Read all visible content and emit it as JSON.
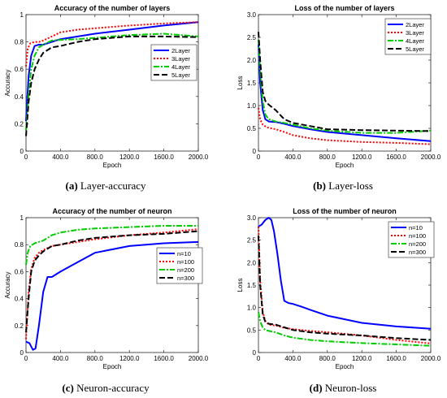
{
  "chart_data": [
    {
      "type": "line",
      "title": "Accuracy of the number of layers",
      "xlabel": "Epoch",
      "ylabel": "Accuracy",
      "caption_tag": "(a)",
      "caption_text": "Layer-accuracy",
      "xlim": [
        0,
        2000
      ],
      "ylim": [
        0,
        1
      ],
      "xticks": [
        0,
        400,
        800,
        1200,
        1600,
        2000
      ],
      "xtick_labels": [
        "0",
        "400.0",
        "800.0",
        "1200.0",
        "1600.0",
        "2000.0"
      ],
      "yticks": [
        0,
        0.2,
        0.4,
        0.6,
        0.8,
        1
      ],
      "ytick_labels": [
        "0",
        "0.2",
        "0.4",
        "0.6",
        "0.8",
        "1"
      ],
      "legend_position": "right-middle",
      "series": [
        {
          "name": "2Layer",
          "color": "#0000ff",
          "dash": "solid",
          "x": [
            0,
            30,
            60,
            100,
            150,
            200,
            300,
            400,
            600,
            800,
            1200,
            1600,
            2000
          ],
          "y": [
            0.22,
            0.55,
            0.7,
            0.77,
            0.78,
            0.78,
            0.8,
            0.82,
            0.84,
            0.86,
            0.89,
            0.92,
            0.945
          ]
        },
        {
          "name": "3Layer",
          "color": "#ff0000",
          "dash": "dot",
          "x": [
            0,
            20,
            50,
            100,
            150,
            200,
            300,
            400,
            600,
            800,
            1200,
            1600,
            2000
          ],
          "y": [
            0.62,
            0.75,
            0.79,
            0.8,
            0.8,
            0.81,
            0.84,
            0.87,
            0.89,
            0.9,
            0.92,
            0.935,
            0.945
          ]
        },
        {
          "name": "4Layer",
          "color": "#00cc00",
          "dash": "dashdot",
          "x": [
            0,
            30,
            60,
            100,
            150,
            200,
            300,
            400,
            600,
            800,
            1200,
            1600,
            2000
          ],
          "y": [
            0.15,
            0.42,
            0.6,
            0.7,
            0.76,
            0.78,
            0.81,
            0.815,
            0.82,
            0.83,
            0.85,
            0.86,
            0.84
          ]
        },
        {
          "name": "5Layer",
          "color": "#000000",
          "dash": "dash",
          "x": [
            0,
            30,
            60,
            100,
            150,
            200,
            300,
            400,
            600,
            800,
            1200,
            1600,
            2000
          ],
          "y": [
            0.11,
            0.36,
            0.5,
            0.6,
            0.67,
            0.72,
            0.76,
            0.77,
            0.8,
            0.82,
            0.84,
            0.84,
            0.835
          ]
        }
      ]
    },
    {
      "type": "line",
      "title": "Loss of the number of layers",
      "xlabel": "Epoch",
      "ylabel": "Loss",
      "caption_tag": "(b)",
      "caption_text": "Layer-loss",
      "xlim": [
        0,
        2000
      ],
      "ylim": [
        0,
        3
      ],
      "xticks": [
        0,
        400,
        800,
        1200,
        1600,
        2000
      ],
      "xtick_labels": [
        "0",
        "400.0",
        "800.0",
        "1200.0",
        "1600.0",
        "2000.0"
      ],
      "yticks": [
        0,
        0.5,
        1,
        1.5,
        2,
        2.5,
        3
      ],
      "ytick_labels": [
        "0",
        "0.5",
        "1.0",
        "1.5",
        "2.0",
        "2.5",
        "3.0"
      ],
      "legend_position": "top-right",
      "series": [
        {
          "name": "2Layer",
          "color": "#0000ff",
          "dash": "solid",
          "x": [
            0,
            20,
            50,
            80,
            120,
            200,
            300,
            400,
            600,
            800,
            1200,
            1600,
            2000
          ],
          "y": [
            2.35,
            1.5,
            0.9,
            0.7,
            0.65,
            0.64,
            0.6,
            0.55,
            0.48,
            0.42,
            0.35,
            0.28,
            0.22
          ]
        },
        {
          "name": "3Layer",
          "color": "#ff0000",
          "dash": "dot",
          "x": [
            0,
            20,
            50,
            100,
            150,
            200,
            300,
            400,
            600,
            800,
            1200,
            1600,
            2000
          ],
          "y": [
            0.95,
            0.7,
            0.58,
            0.52,
            0.5,
            0.48,
            0.42,
            0.35,
            0.28,
            0.24,
            0.2,
            0.18,
            0.15
          ]
        },
        {
          "name": "4Layer",
          "color": "#00cc00",
          "dash": "dashdot",
          "x": [
            0,
            20,
            50,
            80,
            120,
            200,
            300,
            400,
            600,
            800,
            1200,
            1600,
            2000
          ],
          "y": [
            2.45,
            1.8,
            1.1,
            0.8,
            0.7,
            0.65,
            0.62,
            0.58,
            0.5,
            0.45,
            0.4,
            0.4,
            0.45
          ]
        },
        {
          "name": "5Layer",
          "color": "#000000",
          "dash": "dash",
          "x": [
            0,
            20,
            50,
            80,
            120,
            200,
            300,
            400,
            600,
            800,
            1200,
            1600,
            2000
          ],
          "y": [
            2.62,
            2.0,
            1.3,
            1.1,
            1.02,
            0.9,
            0.7,
            0.62,
            0.55,
            0.48,
            0.46,
            0.45,
            0.44
          ]
        }
      ]
    },
    {
      "type": "line",
      "title": "Accuracy of the number of neuron",
      "xlabel": "Epoch",
      "ylabel": "Accuracy",
      "caption_tag": "(c)",
      "caption_text": "Neuron-accuracy",
      "xlim": [
        0,
        2000
      ],
      "ylim": [
        0,
        1
      ],
      "xticks": [
        0,
        400,
        800,
        1200,
        1600,
        2000
      ],
      "xtick_labels": [
        "0",
        "400.0",
        "800.0",
        "1200.0",
        "1600.0",
        "2000.0"
      ],
      "yticks": [
        0,
        0.2,
        0.4,
        0.6,
        0.8,
        1
      ],
      "ytick_labels": [
        "0",
        "0.2",
        "0.4",
        "0.6",
        "0.8",
        "1"
      ],
      "legend_position": "right-middle",
      "series": [
        {
          "name": "n=10",
          "color": "#0000ff",
          "dash": "solid",
          "x": [
            0,
            40,
            80,
            110,
            150,
            200,
            250,
            300,
            400,
            600,
            800,
            1200,
            1600,
            2000
          ],
          "y": [
            0.08,
            0.07,
            0.02,
            0.03,
            0.2,
            0.45,
            0.56,
            0.56,
            0.6,
            0.67,
            0.74,
            0.79,
            0.81,
            0.82
          ]
        },
        {
          "name": "n=100",
          "color": "#ff0000",
          "dash": "dot",
          "x": [
            0,
            30,
            60,
            100,
            150,
            200,
            300,
            400,
            600,
            800,
            1200,
            1600,
            2000
          ],
          "y": [
            0.1,
            0.45,
            0.62,
            0.7,
            0.74,
            0.76,
            0.79,
            0.8,
            0.82,
            0.84,
            0.87,
            0.89,
            0.915
          ]
        },
        {
          "name": "n=200",
          "color": "#00cc00",
          "dash": "dashdot",
          "x": [
            0,
            20,
            50,
            100,
            200,
            300,
            400,
            600,
            800,
            1200,
            1600,
            2000
          ],
          "y": [
            0.65,
            0.74,
            0.79,
            0.81,
            0.83,
            0.87,
            0.89,
            0.91,
            0.92,
            0.93,
            0.94,
            0.94
          ]
        },
        {
          "name": "n=300",
          "color": "#000000",
          "dash": "dash",
          "x": [
            0,
            30,
            60,
            100,
            150,
            200,
            300,
            400,
            600,
            800,
            1200,
            1600,
            2000
          ],
          "y": [
            0.15,
            0.4,
            0.6,
            0.68,
            0.72,
            0.75,
            0.79,
            0.8,
            0.83,
            0.85,
            0.87,
            0.88,
            0.9
          ]
        }
      ]
    },
    {
      "type": "line",
      "title": "Loss of the number of neuron",
      "xlabel": "Epoch",
      "ylabel": "Loss",
      "caption_tag": "(d)",
      "caption_text": "Neuron-loss",
      "xlim": [
        0,
        2000
      ],
      "ylim": [
        0,
        3
      ],
      "xticks": [
        0,
        400,
        800,
        1200,
        1600,
        2000
      ],
      "xtick_labels": [
        "0",
        "400.0",
        "800.0",
        "1200.0",
        "1600.0",
        "2000.0"
      ],
      "yticks": [
        0,
        0.5,
        1,
        1.5,
        2,
        2.5,
        3
      ],
      "ytick_labels": [
        "0",
        "0.5",
        "1.0",
        "1.5",
        "2.0",
        "2.5",
        "3.0"
      ],
      "legend_position": "top-right",
      "series": [
        {
          "name": "n=10",
          "color": "#0000ff",
          "dash": "solid",
          "x": [
            0,
            40,
            80,
            120,
            150,
            180,
            220,
            260,
            300,
            350,
            400,
            500,
            600,
            800,
            1200,
            1600,
            2000
          ],
          "y": [
            2.8,
            2.85,
            2.95,
            3.0,
            2.95,
            2.7,
            2.2,
            1.6,
            1.15,
            1.1,
            1.08,
            1.02,
            0.95,
            0.82,
            0.66,
            0.58,
            0.53
          ]
        },
        {
          "name": "n=100",
          "color": "#ff0000",
          "dash": "dot",
          "x": [
            0,
            20,
            50,
            80,
            120,
            200,
            300,
            400,
            600,
            800,
            1200,
            1600,
            2000
          ],
          "y": [
            2.8,
            1.6,
            0.9,
            0.7,
            0.62,
            0.6,
            0.55,
            0.52,
            0.48,
            0.45,
            0.38,
            0.28,
            0.2
          ]
        },
        {
          "name": "n=200",
          "color": "#00cc00",
          "dash": "dashdot",
          "x": [
            0,
            20,
            50,
            80,
            120,
            200,
            300,
            400,
            600,
            800,
            1200,
            1600,
            2000
          ],
          "y": [
            0.9,
            0.7,
            0.55,
            0.5,
            0.48,
            0.45,
            0.38,
            0.33,
            0.28,
            0.25,
            0.21,
            0.18,
            0.15
          ]
        },
        {
          "name": "n=300",
          "color": "#000000",
          "dash": "dash",
          "x": [
            0,
            20,
            50,
            80,
            120,
            200,
            300,
            400,
            600,
            800,
            1200,
            1600,
            2000
          ],
          "y": [
            2.6,
            1.5,
            0.85,
            0.68,
            0.64,
            0.62,
            0.56,
            0.5,
            0.45,
            0.42,
            0.38,
            0.32,
            0.28
          ]
        }
      ]
    }
  ]
}
